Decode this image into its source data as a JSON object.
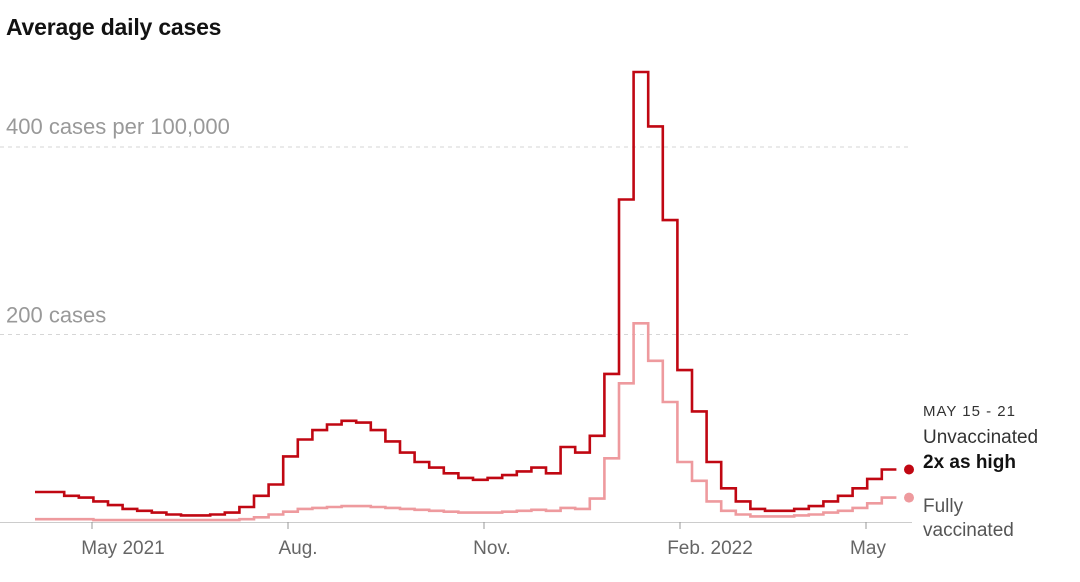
{
  "title": "Average daily cases",
  "colors": {
    "unvaccinated": "#c00712",
    "fully_vaccinated": "#ee9a9e",
    "grid": "#d6d6d6",
    "axis": "#cccccc"
  },
  "chart_data": {
    "type": "line",
    "step": true,
    "title": "Average daily cases",
    "y_unit_labels": {
      "top": "400 cases per 100,000",
      "mid": "200 cases"
    },
    "y_gridlines": [
      200,
      400
    ],
    "ylim": [
      0,
      480
    ],
    "x_tick_labels": [
      "May 2021",
      "Aug.",
      "Nov.",
      "Feb. 2022",
      "May"
    ],
    "x": [
      "Apr 4",
      "Apr 11",
      "Apr 18",
      "Apr 25",
      "May 2",
      "May 9",
      "May 16",
      "May 23",
      "May 30",
      "Jun 6",
      "Jun 13",
      "Jun 20",
      "Jun 27",
      "Jul 4",
      "Jul 11",
      "Jul 18",
      "Jul 25",
      "Aug 1",
      "Aug 8",
      "Aug 15",
      "Aug 22",
      "Aug 29",
      "Sep 5",
      "Sep 12",
      "Sep 19",
      "Sep 26",
      "Oct 3",
      "Oct 10",
      "Oct 17",
      "Oct 24",
      "Oct 31",
      "Nov 7",
      "Nov 14",
      "Nov 21",
      "Nov 28",
      "Dec 5",
      "Dec 12",
      "Dec 19",
      "Dec 26",
      "Jan 2",
      "Jan 9",
      "Jan 16",
      "Jan 23",
      "Jan 30",
      "Feb 6",
      "Feb 13",
      "Feb 20",
      "Feb 27",
      "Mar 6",
      "Mar 13",
      "Mar 20",
      "Mar 27",
      "Apr 3",
      "Apr 10",
      "Apr 17",
      "Apr 24",
      "May 1",
      "May 8",
      "May 15"
    ],
    "series": [
      {
        "name": "Unvaccinated",
        "values": [
          32,
          32,
          28,
          26,
          22,
          18,
          14,
          12,
          10,
          8,
          7,
          7,
          8,
          10,
          16,
          28,
          40,
          70,
          88,
          98,
          104,
          108,
          106,
          98,
          86,
          74,
          64,
          58,
          52,
          47,
          45,
          47,
          50,
          54,
          58,
          52,
          80,
          74,
          92,
          158,
          344,
          480,
          422,
          322,
          162,
          118,
          64,
          36,
          22,
          14,
          12,
          12,
          14,
          17,
          22,
          28,
          36,
          46,
          56
        ]
      },
      {
        "name": "Fully vaccinated",
        "values": [
          3,
          3,
          3,
          3,
          2,
          2,
          2,
          2,
          2,
          2,
          2,
          2,
          2,
          2,
          3,
          5,
          8,
          11,
          14,
          15,
          16,
          17,
          17,
          16,
          15,
          14,
          13,
          12,
          11,
          10,
          10,
          10,
          11,
          12,
          13,
          12,
          15,
          14,
          25,
          68,
          148,
          212,
          172,
          128,
          64,
          44,
          22,
          12,
          8,
          6,
          6,
          6,
          7,
          8,
          10,
          12,
          15,
          20,
          26
        ]
      }
    ],
    "annotation": {
      "date_range": "MAY 15 - 21",
      "unvaccinated_label": "Unvaccinated",
      "ratio": "2x as high",
      "vaccinated_line1": "Fully",
      "vaccinated_line2": "vaccinated"
    }
  }
}
